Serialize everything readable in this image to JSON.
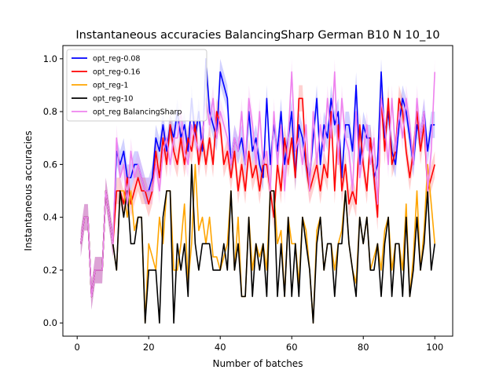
{
  "chart_data": {
    "type": "line",
    "title": "Instantaneous accuracies BalancingSharp German B10 N 10_10",
    "xlabel": "Number of batches",
    "ylabel": "Instantaneous accuracies",
    "xlim": [
      -4,
      105
    ],
    "ylim": [
      -0.05,
      1.05
    ],
    "xticks": [
      0,
      20,
      40,
      60,
      80,
      100
    ],
    "yticks": [
      0.0,
      0.2,
      0.4,
      0.6,
      0.8,
      1.0
    ],
    "xtick_labels": [
      "0",
      "20",
      "40",
      "60",
      "80",
      "100"
    ],
    "ytick_labels": [
      "0.0",
      "0.2",
      "0.4",
      "0.6",
      "0.8",
      "1.0"
    ],
    "grid": false,
    "legend_position": "upper-left",
    "x": [
      1,
      2,
      3,
      4,
      5,
      6,
      7,
      8,
      9,
      10,
      11,
      12,
      13,
      14,
      15,
      16,
      17,
      18,
      19,
      20,
      21,
      22,
      23,
      24,
      25,
      26,
      27,
      28,
      29,
      30,
      31,
      32,
      33,
      34,
      35,
      36,
      37,
      38,
      39,
      40,
      41,
      42,
      43,
      44,
      45,
      46,
      47,
      48,
      49,
      50,
      51,
      52,
      53,
      54,
      55,
      56,
      57,
      58,
      59,
      60,
      61,
      62,
      63,
      64,
      65,
      66,
      67,
      68,
      69,
      70,
      71,
      72,
      73,
      74,
      75,
      76,
      77,
      78,
      79,
      80,
      81,
      82,
      83,
      84,
      85,
      86,
      87,
      88,
      89,
      90,
      91,
      92,
      93,
      94,
      95,
      96,
      97,
      98,
      99,
      100
    ],
    "series": [
      {
        "name": "opt_reg-0.08",
        "color": "#0000ff",
        "band": true,
        "values": [
          0.3,
          0.4,
          0.4,
          0.1,
          0.2,
          0.2,
          0.2,
          0.5,
          0.4,
          0.3,
          0.65,
          0.6,
          0.65,
          0.55,
          0.55,
          0.6,
          0.6,
          0.55,
          0.5,
          0.5,
          0.55,
          0.7,
          0.65,
          0.75,
          0.65,
          0.75,
          0.7,
          0.8,
          0.7,
          0.75,
          0.65,
          0.85,
          0.7,
          0.8,
          0.65,
          1.0,
          0.8,
          0.75,
          0.7,
          0.95,
          0.9,
          0.85,
          0.6,
          0.7,
          0.65,
          0.7,
          0.6,
          0.8,
          0.65,
          0.7,
          0.6,
          0.55,
          0.85,
          0.6,
          0.75,
          0.65,
          0.8,
          0.6,
          0.7,
          0.8,
          0.55,
          0.75,
          0.7,
          0.6,
          0.55,
          0.7,
          0.85,
          0.6,
          0.75,
          0.7,
          0.85,
          0.75,
          0.8,
          0.55,
          0.75,
          0.75,
          0.65,
          0.9,
          0.6,
          0.75,
          0.7,
          0.7,
          0.55,
          0.6,
          0.95,
          0.7,
          0.8,
          0.65,
          0.6,
          0.75,
          0.85,
          0.8,
          0.7,
          0.6,
          0.75,
          0.7,
          0.8,
          0.65,
          0.75,
          0.75
        ]
      },
      {
        "name": "opt_reg-0.16",
        "color": "#ff0000",
        "band": true,
        "values": [
          0.3,
          0.4,
          0.4,
          0.1,
          0.2,
          0.2,
          0.2,
          0.5,
          0.4,
          0.3,
          0.5,
          0.5,
          0.45,
          0.55,
          0.45,
          0.5,
          0.55,
          0.5,
          0.5,
          0.45,
          0.5,
          0.65,
          0.55,
          0.7,
          0.6,
          0.75,
          0.65,
          0.6,
          0.7,
          0.6,
          0.7,
          0.65,
          0.75,
          0.6,
          0.7,
          0.6,
          0.7,
          0.6,
          0.8,
          0.75,
          0.6,
          0.65,
          0.55,
          0.65,
          0.5,
          0.6,
          0.5,
          0.65,
          0.55,
          0.6,
          0.5,
          0.6,
          0.6,
          0.5,
          0.4,
          0.6,
          0.5,
          0.7,
          0.6,
          0.7,
          0.55,
          0.85,
          0.85,
          0.6,
          0.5,
          0.55,
          0.6,
          0.5,
          0.6,
          0.55,
          0.8,
          0.5,
          0.75,
          0.5,
          0.6,
          0.45,
          0.5,
          0.45,
          0.75,
          0.6,
          0.5,
          0.7,
          0.55,
          0.4,
          0.85,
          0.65,
          0.85,
          0.6,
          0.65,
          0.85,
          0.8,
          0.65,
          0.55,
          0.65,
          0.8,
          0.65,
          0.75,
          0.5,
          0.55,
          0.6
        ]
      },
      {
        "name": "opt_reg-1",
        "color": "#ffa500",
        "band": false,
        "values": [
          0.3,
          0.4,
          0.4,
          0.1,
          0.2,
          0.2,
          0.2,
          0.5,
          0.4,
          0.3,
          0.2,
          0.5,
          0.5,
          0.4,
          0.5,
          0.35,
          0.4,
          0.4,
          0.0,
          0.3,
          0.25,
          0.2,
          0.4,
          0.3,
          0.5,
          0.5,
          0.2,
          0.2,
          0.3,
          0.45,
          0.15,
          0.3,
          0.6,
          0.35,
          0.4,
          0.3,
          0.4,
          0.25,
          0.25,
          0.2,
          0.25,
          0.3,
          0.5,
          0.2,
          0.4,
          0.1,
          0.1,
          0.4,
          0.2,
          0.3,
          0.25,
          0.3,
          0.2,
          0.5,
          0.5,
          0.3,
          0.35,
          0.1,
          0.4,
          0.3,
          0.3,
          0.15,
          0.4,
          0.35,
          0.2,
          0.0,
          0.35,
          0.4,
          0.2,
          0.3,
          0.3,
          0.2,
          0.3,
          0.35,
          0.5,
          0.3,
          0.2,
          0.15,
          0.4,
          0.3,
          0.4,
          0.2,
          0.25,
          0.3,
          0.2,
          0.35,
          0.4,
          0.2,
          0.3,
          0.3,
          0.2,
          0.45,
          0.1,
          0.25,
          0.5,
          0.2,
          0.35,
          0.6,
          0.45,
          0.3
        ]
      },
      {
        "name": "opt_reg-10",
        "color": "#000000",
        "band": false,
        "values": [
          0.3,
          0.4,
          0.4,
          0.1,
          0.2,
          0.2,
          0.2,
          0.5,
          0.4,
          0.3,
          0.2,
          0.5,
          0.4,
          0.5,
          0.3,
          0.3,
          0.4,
          0.4,
          0.0,
          0.2,
          0.2,
          0.2,
          0.0,
          0.4,
          0.5,
          0.5,
          0.0,
          0.3,
          0.2,
          0.3,
          0.1,
          0.6,
          0.3,
          0.2,
          0.3,
          0.3,
          0.3,
          0.2,
          0.2,
          0.2,
          0.3,
          0.2,
          0.5,
          0.2,
          0.3,
          0.1,
          0.1,
          0.4,
          0.1,
          0.3,
          0.2,
          0.3,
          0.1,
          0.5,
          0.5,
          0.1,
          0.3,
          0.1,
          0.4,
          0.1,
          0.3,
          0.1,
          0.4,
          0.3,
          0.2,
          0.0,
          0.3,
          0.4,
          0.2,
          0.3,
          0.3,
          0.1,
          0.3,
          0.3,
          0.5,
          0.3,
          0.2,
          0.1,
          0.4,
          0.3,
          0.4,
          0.2,
          0.2,
          0.3,
          0.1,
          0.3,
          0.4,
          0.1,
          0.3,
          0.3,
          0.1,
          0.4,
          0.1,
          0.2,
          0.4,
          0.2,
          0.3,
          0.5,
          0.2,
          0.3
        ]
      },
      {
        "name": "opt_reg BalancingSharp",
        "color": "#ee82ee",
        "band": true,
        "values": [
          0.3,
          0.4,
          0.4,
          0.1,
          0.2,
          0.2,
          0.2,
          0.5,
          0.4,
          0.3,
          0.7,
          0.55,
          0.6,
          0.45,
          0.65,
          0.55,
          0.6,
          0.55,
          0.5,
          0.5,
          0.5,
          0.6,
          0.5,
          0.65,
          0.7,
          0.6,
          0.7,
          0.7,
          0.8,
          0.65,
          0.6,
          0.75,
          0.7,
          0.65,
          0.7,
          0.85,
          0.75,
          0.85,
          0.7,
          0.8,
          0.75,
          0.7,
          0.6,
          0.7,
          0.65,
          0.8,
          0.6,
          0.85,
          0.75,
          0.6,
          0.8,
          0.6,
          0.65,
          0.5,
          0.8,
          0.6,
          0.75,
          0.5,
          0.7,
          0.95,
          0.65,
          0.7,
          0.6,
          0.75,
          0.5,
          0.8,
          0.6,
          0.75,
          0.65,
          0.85,
          0.7,
          0.95,
          0.6,
          0.85,
          0.7,
          0.65,
          0.5,
          0.8,
          0.55,
          0.65,
          0.75,
          0.6,
          0.7,
          0.45,
          0.85,
          0.75,
          0.6,
          0.85,
          0.65,
          0.8,
          0.7,
          0.85,
          0.75,
          0.6,
          0.85,
          0.7,
          0.8,
          0.5,
          0.65,
          0.95
        ]
      }
    ]
  }
}
